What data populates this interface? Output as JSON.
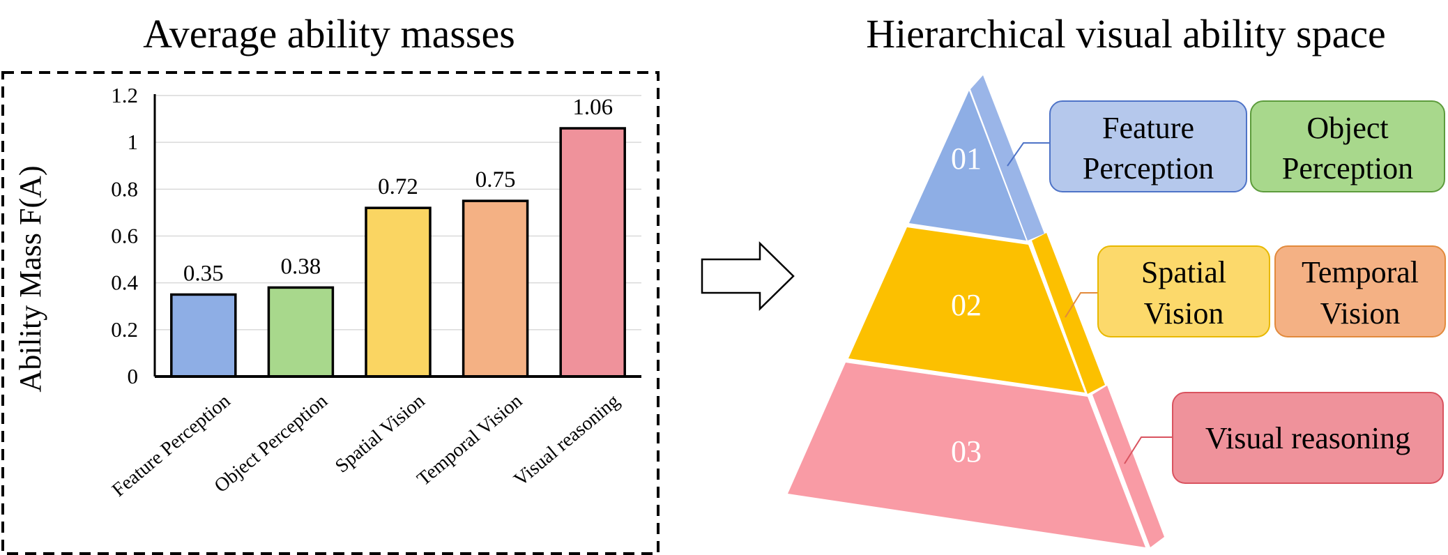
{
  "chart_title": "Average ability masses",
  "diagram_title": "Hierarchical visual ability space",
  "chart_data": {
    "type": "bar",
    "title": "Average ability masses",
    "xlabel": "",
    "ylabel": "Ability Mass  F(A)",
    "categories": [
      "Feature Perception",
      "Object Perception",
      "Spatial Vision",
      "Temporal Vision",
      "Visual reasoning"
    ],
    "values": [
      0.35,
      0.38,
      0.72,
      0.75,
      1.06
    ],
    "value_labels": [
      "0.35",
      "0.38",
      "0.72",
      "0.75",
      "1.06"
    ],
    "colors": [
      "#8eaee5",
      "#a8d88c",
      "#fad562",
      "#f4b184",
      "#ef929b"
    ],
    "ylim": [
      0,
      1.2
    ],
    "yticks": [
      "0",
      "0.2",
      "0.4",
      "0.6",
      "0.8",
      "1",
      "1.2"
    ],
    "grid": true
  },
  "pyramid": {
    "tiers": [
      {
        "label": "01",
        "color": "#8eaee5",
        "side_color": "#9ab5e8"
      },
      {
        "label": "02",
        "color": "#fcc000",
        "side_color": "#fcc000"
      },
      {
        "label": "03",
        "color": "#f99ba5",
        "side_color": "#f99ba5"
      }
    ],
    "boxes": {
      "feature": {
        "line1": "Feature",
        "line2": "Perception",
        "fill": "#b5c8ec",
        "stroke": "#4e73c7"
      },
      "object": {
        "line1": "Object",
        "line2": "Perception",
        "fill": "#a8d88c",
        "stroke": "#5d9c3c"
      },
      "spatial": {
        "line1": "Spatial",
        "line2": "Vision",
        "fill": "#fcd96b",
        "stroke": "#e8b800"
      },
      "temporal": {
        "line1": "Temporal",
        "line2": "Vision",
        "fill": "#f4b184",
        "stroke": "#e28a3c"
      },
      "reasoning": {
        "line1": "Visual reasoning",
        "fill": "#ef929b",
        "stroke": "#d9535f"
      }
    }
  }
}
